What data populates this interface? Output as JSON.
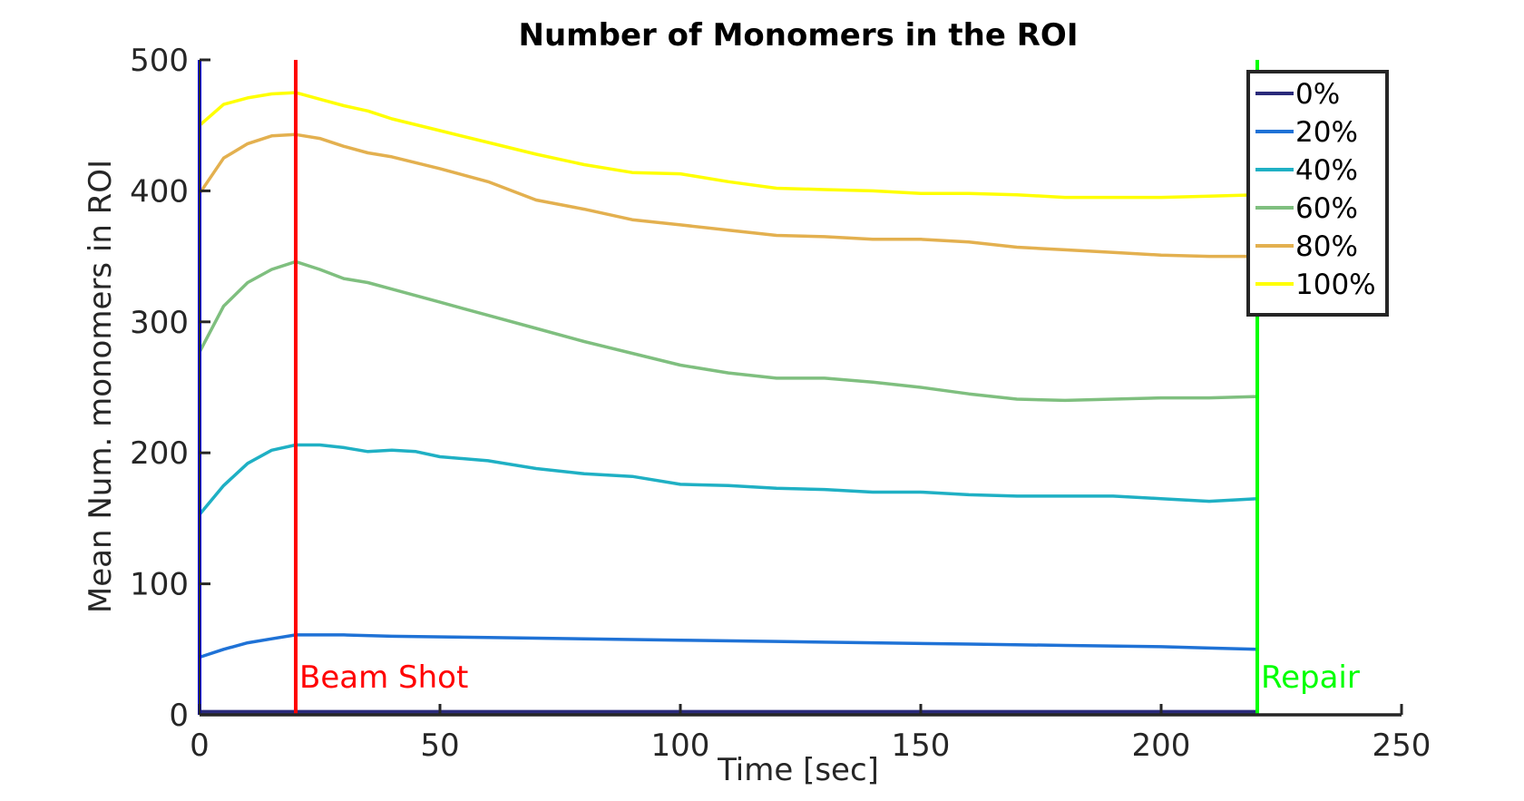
{
  "chart_data": {
    "type": "line",
    "title": "Number of Monomers in the ROI",
    "xlabel": "Time [sec]",
    "ylabel": "Mean Num. monomers in ROI",
    "xlim": [
      0,
      250
    ],
    "ylim": [
      0,
      500
    ],
    "xticks": [
      0,
      50,
      100,
      150,
      200,
      250
    ],
    "yticks": [
      0,
      100,
      200,
      300,
      400,
      500
    ],
    "grid": false,
    "legend_position": "top-right",
    "markers": [
      {
        "label": "Beam Shot",
        "x": 20,
        "color": "#ff0000"
      },
      {
        "label": "Repair",
        "x": 220,
        "color": "#00ff00"
      }
    ],
    "start_line": {
      "x": 0,
      "color": "#0000ff"
    },
    "series": [
      {
        "name": "0%",
        "color": "#2a2a7a",
        "x": [
          0,
          20,
          50,
          100,
          150,
          200,
          220
        ],
        "y": [
          2,
          2,
          2,
          2,
          2,
          2,
          2
        ]
      },
      {
        "name": "20%",
        "color": "#1f72d6",
        "x": [
          0,
          5,
          10,
          15,
          20,
          30,
          40,
          60,
          80,
          100,
          120,
          140,
          160,
          180,
          200,
          210,
          220
        ],
        "y": [
          44,
          50,
          55,
          58,
          61,
          61,
          60,
          59,
          58,
          57,
          56,
          55,
          54,
          53,
          52,
          51,
          50
        ]
      },
      {
        "name": "40%",
        "color": "#1fb0c4",
        "x": [
          0,
          5,
          10,
          15,
          20,
          25,
          30,
          35,
          40,
          45,
          50,
          60,
          70,
          80,
          90,
          100,
          110,
          120,
          130,
          140,
          150,
          160,
          170,
          180,
          190,
          200,
          210,
          220
        ],
        "y": [
          153,
          175,
          192,
          202,
          206,
          206,
          204,
          201,
          202,
          201,
          197,
          194,
          188,
          184,
          182,
          176,
          175,
          173,
          172,
          170,
          170,
          168,
          167,
          167,
          167,
          165,
          163,
          165
        ]
      },
      {
        "name": "60%",
        "color": "#7fbf7f",
        "x": [
          0,
          5,
          10,
          15,
          20,
          25,
          30,
          35,
          40,
          50,
          60,
          70,
          80,
          90,
          100,
          110,
          120,
          130,
          140,
          150,
          160,
          170,
          180,
          190,
          200,
          210,
          220
        ],
        "y": [
          277,
          312,
          330,
          340,
          346,
          340,
          333,
          330,
          325,
          315,
          305,
          295,
          285,
          276,
          267,
          261,
          257,
          257,
          254,
          250,
          245,
          241,
          240,
          241,
          242,
          242,
          243
        ]
      },
      {
        "name": "80%",
        "color": "#e3b04f",
        "x": [
          0,
          5,
          10,
          15,
          20,
          25,
          30,
          35,
          40,
          50,
          60,
          70,
          80,
          90,
          100,
          110,
          120,
          130,
          140,
          150,
          160,
          170,
          180,
          190,
          200,
          210,
          220
        ],
        "y": [
          398,
          425,
          436,
          442,
          443,
          440,
          434,
          429,
          426,
          417,
          407,
          393,
          386,
          378,
          374,
          370,
          366,
          365,
          363,
          363,
          361,
          357,
          355,
          353,
          351,
          350,
          350
        ]
      },
      {
        "name": "100%",
        "color": "#ffff00",
        "x": [
          0,
          5,
          10,
          15,
          20,
          25,
          30,
          35,
          40,
          50,
          60,
          70,
          80,
          90,
          100,
          110,
          120,
          130,
          140,
          150,
          160,
          170,
          180,
          190,
          200,
          210,
          220
        ],
        "y": [
          450,
          466,
          471,
          474,
          475,
          470,
          465,
          461,
          455,
          446,
          437,
          428,
          420,
          414,
          413,
          407,
          402,
          401,
          400,
          398,
          398,
          397,
          395,
          395,
          395,
          396,
          397
        ]
      }
    ]
  }
}
